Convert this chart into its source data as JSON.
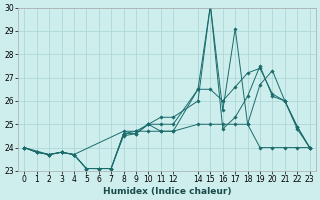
{
  "xlabel": "Humidex (Indice chaleur)",
  "bg_color": "#ceeeed",
  "grid_color": "#aad4d4",
  "line_color": "#1a6b6b",
  "xlim": [
    -0.5,
    23.5
  ],
  "ylim": [
    23,
    30
  ],
  "xticks": [
    0,
    1,
    2,
    3,
    4,
    5,
    6,
    7,
    8,
    9,
    10,
    11,
    12,
    14,
    15,
    16,
    17,
    18,
    19,
    20,
    21,
    22,
    23
  ],
  "yticks": [
    23,
    24,
    25,
    26,
    27,
    28,
    29,
    30
  ],
  "series": [
    {
      "x": [
        0,
        1,
        2,
        3,
        4,
        5,
        6,
        7,
        8,
        9,
        10,
        11,
        12,
        14,
        15,
        16,
        17,
        18,
        19,
        20,
        21,
        22,
        23
      ],
      "y": [
        24.0,
        23.8,
        23.7,
        23.8,
        23.7,
        23.1,
        23.1,
        23.1,
        24.6,
        24.7,
        24.7,
        24.7,
        24.7,
        25.0,
        25.0,
        25.0,
        25.0,
        25.0,
        24.0,
        24.0,
        24.0,
        24.0,
        24.0
      ]
    },
    {
      "x": [
        0,
        2,
        3,
        4,
        8,
        9,
        10,
        11,
        12,
        14,
        15,
        16,
        17,
        18,
        19,
        20,
        21,
        22,
        23
      ],
      "y": [
        24.0,
        23.7,
        23.8,
        23.7,
        24.7,
        24.7,
        25.0,
        25.3,
        25.3,
        26.0,
        30.1,
        24.8,
        25.3,
        26.2,
        27.5,
        26.2,
        26.0,
        24.9,
        24.0
      ]
    },
    {
      "x": [
        0,
        1,
        2,
        3,
        4,
        5,
        6,
        7,
        8,
        9,
        10,
        11,
        12,
        14,
        15,
        16,
        17,
        18,
        19,
        20,
        21,
        22,
        23
      ],
      "y": [
        24.0,
        23.8,
        23.7,
        23.8,
        23.7,
        23.1,
        23.1,
        23.1,
        24.6,
        24.6,
        25.0,
        25.0,
        25.0,
        26.5,
        30.1,
        25.6,
        29.1,
        25.0,
        26.7,
        27.3,
        26.0,
        24.9,
        24.0
      ]
    },
    {
      "x": [
        0,
        1,
        2,
        3,
        4,
        5,
        6,
        7,
        8,
        9,
        10,
        11,
        12,
        14,
        15,
        16,
        17,
        18,
        19,
        20,
        21,
        22,
        23
      ],
      "y": [
        24.0,
        23.8,
        23.7,
        23.8,
        23.7,
        23.1,
        23.1,
        23.1,
        24.5,
        24.6,
        25.0,
        24.7,
        24.7,
        26.5,
        26.5,
        26.0,
        26.6,
        27.2,
        27.4,
        26.3,
        26.0,
        24.8,
        24.0
      ]
    }
  ]
}
